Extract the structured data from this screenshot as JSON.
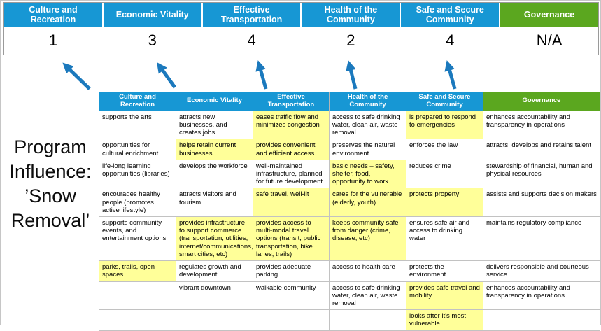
{
  "title": {
    "text": "Program\nInfluence:\n’Snow\nRemoval’"
  },
  "colors": {
    "header_blue": "#1797d4",
    "header_green": "#5ba71f",
    "highlight": "#ffff99",
    "arrow_blue": "#1b79bd"
  },
  "icons": {
    "arrow": "up-arrow-icon"
  },
  "scorecard": {
    "columns": [
      {
        "label": "Culture and Recreation",
        "score": "1",
        "theme": "blue"
      },
      {
        "label": "Economic Vitality",
        "score": "3",
        "theme": "blue"
      },
      {
        "label": "Effective Transportation",
        "score": "4",
        "theme": "blue"
      },
      {
        "label": "Health of the Community",
        "score": "2",
        "theme": "blue"
      },
      {
        "label": "Safe and Secure Community",
        "score": "4",
        "theme": "blue"
      },
      {
        "label": "Governance",
        "score": "N/A",
        "theme": "green"
      }
    ]
  },
  "matrix": {
    "headers": [
      {
        "label": "Culture and Recreation",
        "theme": "blue"
      },
      {
        "label": "Economic Vitality",
        "theme": "blue"
      },
      {
        "label": "Effective Transportation",
        "theme": "blue"
      },
      {
        "label": "Health of the Community",
        "theme": "blue"
      },
      {
        "label": "Safe and Secure Community",
        "theme": "blue"
      },
      {
        "label": "Governance",
        "theme": "green"
      }
    ],
    "rows": [
      [
        {
          "t": "supports the arts",
          "h": false
        },
        {
          "t": "attracts new businesses, and creates jobs",
          "h": false
        },
        {
          "t": "eases traffic flow and minimizes congestion",
          "h": true
        },
        {
          "t": "access to safe drinking water, clean air, waste removal",
          "h": false
        },
        {
          "t": "is prepared to respond to emergencies",
          "h": true
        },
        {
          "t": "enhances accountability and transparency in operations",
          "h": false
        }
      ],
      [
        {
          "t": "opportunities for cultural enrichment",
          "h": false
        },
        {
          "t": "helps retain current businesses",
          "h": true
        },
        {
          "t": "provides convenient and efficient access",
          "h": true
        },
        {
          "t": "preserves the natural environment",
          "h": false
        },
        {
          "t": "enforces the law",
          "h": false
        },
        {
          "t": "attracts, develops and retains talent",
          "h": false
        }
      ],
      [
        {
          "t": "life-long learning opportunities (libraries)",
          "h": false
        },
        {
          "t": "develops the workforce",
          "h": false
        },
        {
          "t": "well-maintained infrastructure, planned for future development",
          "h": false
        },
        {
          "t": "basic needs – safety, shelter, food, opportunity to work",
          "h": true
        },
        {
          "t": "reduces crime",
          "h": false
        },
        {
          "t": "stewardship of financial, human and physical resources",
          "h": false
        }
      ],
      [
        {
          "t": "encourages healthy people (promotes active lifestyle)",
          "h": false
        },
        {
          "t": "attracts visitors and tourism",
          "h": false
        },
        {
          "t": "safe travel, well-lit",
          "h": true
        },
        {
          "t": "cares for the vulnerable (elderly, youth)",
          "h": true
        },
        {
          "t": "protects property",
          "h": true
        },
        {
          "t": "assists and supports decision makers",
          "h": false
        }
      ],
      [
        {
          "t": "supports community events, and entertainment options",
          "h": false
        },
        {
          "t": "provides infrastructure to support commerce (transportation, utilities, internet/communications, smart cities, etc)",
          "h": true
        },
        {
          "t": "provides access to multi-modal travel options (transit, public transportation, bike lanes, trails)",
          "h": true
        },
        {
          "t": "keeps community safe from danger (crime, disease, etc)",
          "h": true
        },
        {
          "t": "ensures safe air and access to drinking water",
          "h": false
        },
        {
          "t": "maintains regulatory compliance",
          "h": false
        }
      ],
      [
        {
          "t": "parks, trails, open spaces",
          "h": true
        },
        {
          "t": "regulates growth and development",
          "h": false
        },
        {
          "t": "provides adequate parking",
          "h": false
        },
        {
          "t": "access to health care",
          "h": false
        },
        {
          "t": "protects the environment",
          "h": false
        },
        {
          "t": "delivers responsible and courteous service",
          "h": false
        }
      ],
      [
        {
          "t": "",
          "h": false
        },
        {
          "t": "vibrant downtown",
          "h": false
        },
        {
          "t": "walkable community",
          "h": false
        },
        {
          "t": "access to safe drinking water, clean air, waste removal",
          "h": false
        },
        {
          "t": "provides safe travel and mobility",
          "h": true
        },
        {
          "t": "enhances accountability and transparency in operations",
          "h": false
        }
      ],
      [
        {
          "t": "",
          "h": false
        },
        {
          "t": "",
          "h": false
        },
        {
          "t": "",
          "h": false
        },
        {
          "t": "",
          "h": false
        },
        {
          "t": "looks after it's most vulnerable",
          "h": true
        },
        {
          "t": "",
          "h": false
        }
      ]
    ]
  }
}
